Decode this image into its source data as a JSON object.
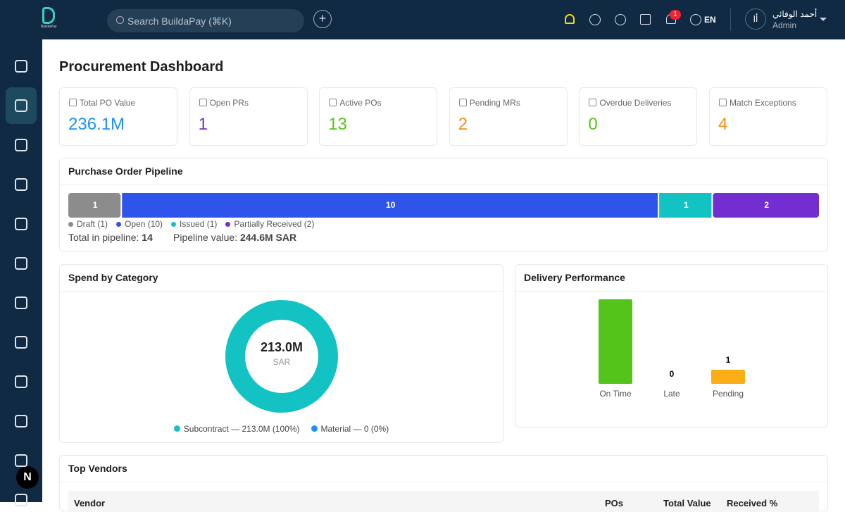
{
  "topbar": {
    "logo_caption": "BuildaPay",
    "search_placeholder": "Search BuildaPay (⌘K)",
    "notification_count": 1,
    "language": "EN",
    "avatar": "أا",
    "user_name": "أحمد الوفائي",
    "user_role": "Admin"
  },
  "page_title": "Procurement Dashboard",
  "kpis": [
    {
      "label": "Total PO Value",
      "value": "236.1M",
      "color": "#1890ff"
    },
    {
      "label": "Open PRs",
      "value": 1,
      "color": "#722ed1"
    },
    {
      "label": "Active POs",
      "value": 13,
      "color": "#52c41a"
    },
    {
      "label": "Pending MRs",
      "value": 2,
      "color": "#fa8c16"
    },
    {
      "label": "Overdue Deliveries",
      "value": 0,
      "color": "#52c41a"
    },
    {
      "label": "Match Exceptions",
      "value": 4,
      "color": "#fa8c16"
    }
  ],
  "pipeline": {
    "title": "Purchase Order Pipeline",
    "segments": [
      {
        "count": 1,
        "color": "#8c8c8c",
        "legend": "Draft (1)"
      },
      {
        "count": 10,
        "color": "#2f54eb",
        "legend": "Open (10)"
      },
      {
        "count": 1,
        "color": "#13c2c2",
        "legend": "Issued (1)"
      },
      {
        "count": 2,
        "color": "#722ed1",
        "legend": "Partially Received (2)"
      }
    ],
    "total_label": "Total in pipeline:",
    "total": 14,
    "value_label": "Pipeline value:",
    "value": "244.6M SAR"
  },
  "spend": {
    "title": "Spend by Category",
    "center_value": "213.0M",
    "center_unit": "SAR",
    "slices": [
      {
        "share": 100,
        "color": "#13c2c2",
        "legend": "Subcontract — 213.0M (100%)"
      },
      {
        "share": 0,
        "color": "#1890ff",
        "legend": "Material — 0 (0%)"
      }
    ]
  },
  "delivery": {
    "title": "Delivery Performance",
    "categories": [
      "On Time",
      "Late",
      "Pending"
    ],
    "values": [
      6,
      0,
      1
    ],
    "value_labels": [
      null,
      "0",
      "1"
    ],
    "colors": [
      "#52c41a",
      "#f5222d",
      "#faad14"
    ],
    "ylim": [
      0,
      6
    ]
  },
  "vendors": {
    "title": "Top Vendors",
    "columns": [
      "Vendor",
      "POs",
      "Total Value",
      "Received %"
    ]
  },
  "dev_badge": "N"
}
